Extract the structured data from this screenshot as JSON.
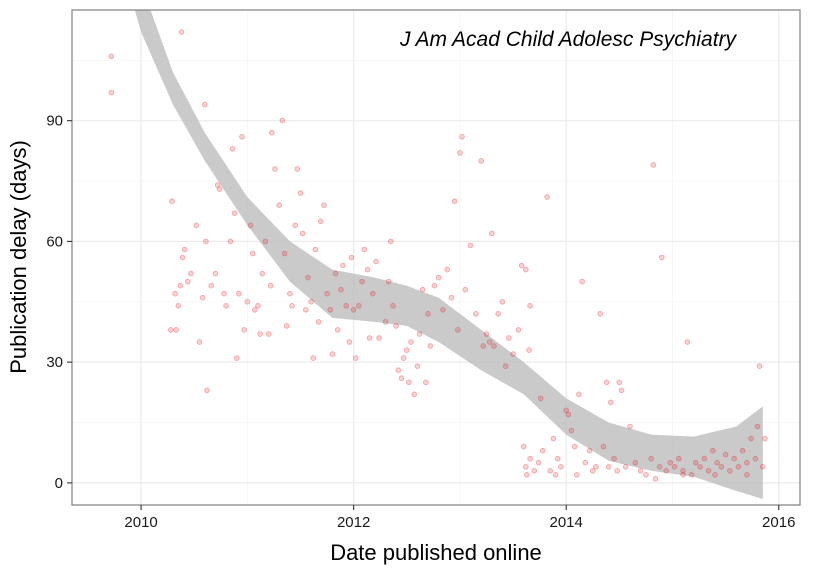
{
  "chart_data": {
    "type": "scatter",
    "annotation": "J Am Acad Child Adolesc Psychiatry",
    "xlabel": "Date published online",
    "ylabel": "Publication delay (days)",
    "xlim": [
      2009.35,
      2016.2
    ],
    "ylim": [
      -5.5,
      117.5
    ],
    "x_ticks": [
      2010,
      2012,
      2014,
      2016
    ],
    "x_tick_labels": [
      "2010",
      "2012",
      "2014",
      "2016"
    ],
    "y_ticks": [
      0,
      30,
      60,
      90
    ],
    "y_tick_labels": [
      "0",
      "30",
      "60",
      "90"
    ],
    "grid": true,
    "legend": "none",
    "colors": {
      "points": "#e41a1c",
      "ribbon": "#bdbdbd",
      "major_grid": "#ebebeb",
      "minor_grid": "#f5f5f5",
      "panel_border": "#7f7f7f"
    },
    "smooth_band": [
      {
        "x": 2009.7,
        "lower": 140,
        "upper": 150
      },
      {
        "x": 2010.0,
        "lower": 112,
        "upper": 124
      },
      {
        "x": 2010.3,
        "lower": 94,
        "upper": 102
      },
      {
        "x": 2010.6,
        "lower": 80,
        "upper": 87
      },
      {
        "x": 2011.0,
        "lower": 64,
        "upper": 71
      },
      {
        "x": 2011.4,
        "lower": 50,
        "upper": 60
      },
      {
        "x": 2011.8,
        "lower": 41,
        "upper": 53
      },
      {
        "x": 2012.2,
        "lower": 40,
        "upper": 51
      },
      {
        "x": 2012.5,
        "lower": 39,
        "upper": 49
      },
      {
        "x": 2012.8,
        "lower": 35,
        "upper": 46
      },
      {
        "x": 2013.2,
        "lower": 28,
        "upper": 38
      },
      {
        "x": 2013.6,
        "lower": 22,
        "upper": 30
      },
      {
        "x": 2014.0,
        "lower": 12,
        "upper": 21
      },
      {
        "x": 2014.4,
        "lower": 5.5,
        "upper": 15
      },
      {
        "x": 2014.8,
        "lower": 3,
        "upper": 12
      },
      {
        "x": 2015.2,
        "lower": 1.5,
        "upper": 11.5
      },
      {
        "x": 2015.6,
        "lower": -2,
        "upper": 14
      },
      {
        "x": 2015.85,
        "lower": -4,
        "upper": 19
      }
    ],
    "points": [
      [
        2009.72,
        106
      ],
      [
        2009.72,
        97
      ],
      [
        2010.38,
        112
      ],
      [
        2010.29,
        70
      ],
      [
        2010.28,
        38
      ],
      [
        2010.33,
        38
      ],
      [
        2010.35,
        44
      ],
      [
        2010.37,
        49
      ],
      [
        2010.32,
        47
      ],
      [
        2010.39,
        56
      ],
      [
        2010.41,
        58
      ],
      [
        2010.44,
        50
      ],
      [
        2010.47,
        52
      ],
      [
        2010.52,
        64
      ],
      [
        2010.55,
        35
      ],
      [
        2010.58,
        46
      ],
      [
        2010.61,
        60
      ],
      [
        2010.6,
        94
      ],
      [
        2010.62,
        23
      ],
      [
        2010.66,
        49
      ],
      [
        2010.7,
        52
      ],
      [
        2010.72,
        74
      ],
      [
        2010.74,
        73
      ],
      [
        2010.78,
        47
      ],
      [
        2010.8,
        44
      ],
      [
        2010.84,
        60
      ],
      [
        2010.86,
        83
      ],
      [
        2010.88,
        67
      ],
      [
        2010.9,
        31
      ],
      [
        2010.92,
        47
      ],
      [
        2010.95,
        86
      ],
      [
        2010.97,
        38
      ],
      [
        2011.0,
        45
      ],
      [
        2011.03,
        64
      ],
      [
        2011.05,
        57
      ],
      [
        2011.07,
        43
      ],
      [
        2011.1,
        44
      ],
      [
        2011.12,
        37
      ],
      [
        2011.14,
        52
      ],
      [
        2011.17,
        60
      ],
      [
        2011.2,
        37
      ],
      [
        2011.22,
        49
      ],
      [
        2011.23,
        87
      ],
      [
        2011.26,
        78
      ],
      [
        2011.3,
        69
      ],
      [
        2011.33,
        90
      ],
      [
        2011.35,
        57
      ],
      [
        2011.37,
        39
      ],
      [
        2011.4,
        47
      ],
      [
        2011.42,
        44
      ],
      [
        2011.45,
        64
      ],
      [
        2011.47,
        78
      ],
      [
        2011.5,
        72
      ],
      [
        2011.52,
        62
      ],
      [
        2011.55,
        43
      ],
      [
        2011.57,
        51
      ],
      [
        2011.6,
        45
      ],
      [
        2011.62,
        31
      ],
      [
        2011.64,
        58
      ],
      [
        2011.67,
        40
      ],
      [
        2011.69,
        65
      ],
      [
        2011.72,
        69
      ],
      [
        2011.75,
        47
      ],
      [
        2011.78,
        43
      ],
      [
        2011.8,
        32
      ],
      [
        2011.83,
        52
      ],
      [
        2011.85,
        38
      ],
      [
        2011.88,
        48
      ],
      [
        2011.9,
        54
      ],
      [
        2011.93,
        44
      ],
      [
        2011.96,
        35
      ],
      [
        2011.98,
        56
      ],
      [
        2012.0,
        43
      ],
      [
        2012.02,
        31
      ],
      [
        2012.05,
        44
      ],
      [
        2012.08,
        50
      ],
      [
        2012.1,
        58
      ],
      [
        2012.13,
        53
      ],
      [
        2012.15,
        36
      ],
      [
        2012.18,
        47
      ],
      [
        2012.21,
        55
      ],
      [
        2012.24,
        36
      ],
      [
        2012.3,
        40
      ],
      [
        2012.33,
        50
      ],
      [
        2012.35,
        60
      ],
      [
        2012.37,
        44
      ],
      [
        2012.4,
        39
      ],
      [
        2012.42,
        28
      ],
      [
        2012.45,
        26
      ],
      [
        2012.47,
        31
      ],
      [
        2012.5,
        33
      ],
      [
        2012.52,
        25
      ],
      [
        2012.54,
        35
      ],
      [
        2012.57,
        22
      ],
      [
        2012.6,
        29
      ],
      [
        2012.62,
        37
      ],
      [
        2012.65,
        48
      ],
      [
        2012.68,
        25
      ],
      [
        2012.7,
        42
      ],
      [
        2012.72,
        34
      ],
      [
        2012.76,
        49
      ],
      [
        2012.8,
        51
      ],
      [
        2012.84,
        43
      ],
      [
        2012.88,
        53
      ],
      [
        2012.92,
        46
      ],
      [
        2012.95,
        70
      ],
      [
        2012.98,
        38
      ],
      [
        2013.0,
        82
      ],
      [
        2013.02,
        86
      ],
      [
        2013.05,
        48
      ],
      [
        2013.1,
        59
      ],
      [
        2013.15,
        42
      ],
      [
        2013.2,
        80
      ],
      [
        2013.22,
        34
      ],
      [
        2013.25,
        37
      ],
      [
        2013.28,
        35
      ],
      [
        2013.3,
        62
      ],
      [
        2013.32,
        34
      ],
      [
        2013.36,
        42
      ],
      [
        2013.4,
        45
      ],
      [
        2013.43,
        29
      ],
      [
        2013.46,
        36
      ],
      [
        2013.5,
        32
      ],
      [
        2013.55,
        38
      ],
      [
        2013.58,
        54
      ],
      [
        2013.62,
        53
      ],
      [
        2013.66,
        44
      ],
      [
        2013.65,
        33
      ],
      [
        2013.6,
        9
      ],
      [
        2013.62,
        4
      ],
      [
        2013.63,
        2
      ],
      [
        2013.66,
        6
      ],
      [
        2013.7,
        3
      ],
      [
        2013.74,
        5
      ],
      [
        2013.76,
        21
      ],
      [
        2013.78,
        8
      ],
      [
        2013.82,
        71
      ],
      [
        2013.85,
        3
      ],
      [
        2013.88,
        11
      ],
      [
        2013.92,
        6
      ],
      [
        2013.95,
        4
      ],
      [
        2014.0,
        18
      ],
      [
        2014.02,
        17
      ],
      [
        2014.05,
        13
      ],
      [
        2014.08,
        9
      ],
      [
        2014.12,
        22
      ],
      [
        2014.15,
        50
      ],
      [
        2014.18,
        5
      ],
      [
        2014.22,
        8
      ],
      [
        2014.25,
        3
      ],
      [
        2014.28,
        4
      ],
      [
        2014.32,
        42
      ],
      [
        2014.35,
        9
      ],
      [
        2014.38,
        25
      ],
      [
        2014.42,
        20
      ],
      [
        2014.45,
        6
      ],
      [
        2014.48,
        3
      ],
      [
        2014.5,
        25
      ],
      [
        2014.52,
        23
      ],
      [
        2014.56,
        4
      ],
      [
        2014.6,
        14
      ],
      [
        2014.65,
        5
      ],
      [
        2014.7,
        3
      ],
      [
        2014.75,
        2
      ],
      [
        2014.8,
        6
      ],
      [
        2014.82,
        79
      ],
      [
        2014.84,
        1
      ],
      [
        2014.88,
        4
      ],
      [
        2014.9,
        56
      ],
      [
        2014.94,
        3
      ],
      [
        2014.98,
        5
      ],
      [
        2015.02,
        4
      ],
      [
        2015.06,
        6
      ],
      [
        2015.1,
        3
      ],
      [
        2015.14,
        35
      ],
      [
        2015.18,
        2
      ],
      [
        2015.22,
        5
      ],
      [
        2015.26,
        4
      ],
      [
        2015.3,
        6
      ],
      [
        2015.34,
        3
      ],
      [
        2015.38,
        8
      ],
      [
        2015.42,
        5
      ],
      [
        2015.46,
        4
      ],
      [
        2015.5,
        7
      ],
      [
        2015.54,
        3
      ],
      [
        2015.58,
        6
      ],
      [
        2015.62,
        4
      ],
      [
        2015.66,
        8
      ],
      [
        2015.7,
        5
      ],
      [
        2015.74,
        11
      ],
      [
        2015.78,
        6
      ],
      [
        2015.8,
        14
      ],
      [
        2015.82,
        29
      ],
      [
        2015.85,
        4
      ],
      [
        2015.87,
        11
      ],
      [
        2015.7,
        2
      ],
      [
        2015.4,
        2
      ],
      [
        2015.1,
        2
      ],
      [
        2014.4,
        4
      ],
      [
        2014.1,
        2
      ],
      [
        2013.9,
        2
      ]
    ]
  }
}
